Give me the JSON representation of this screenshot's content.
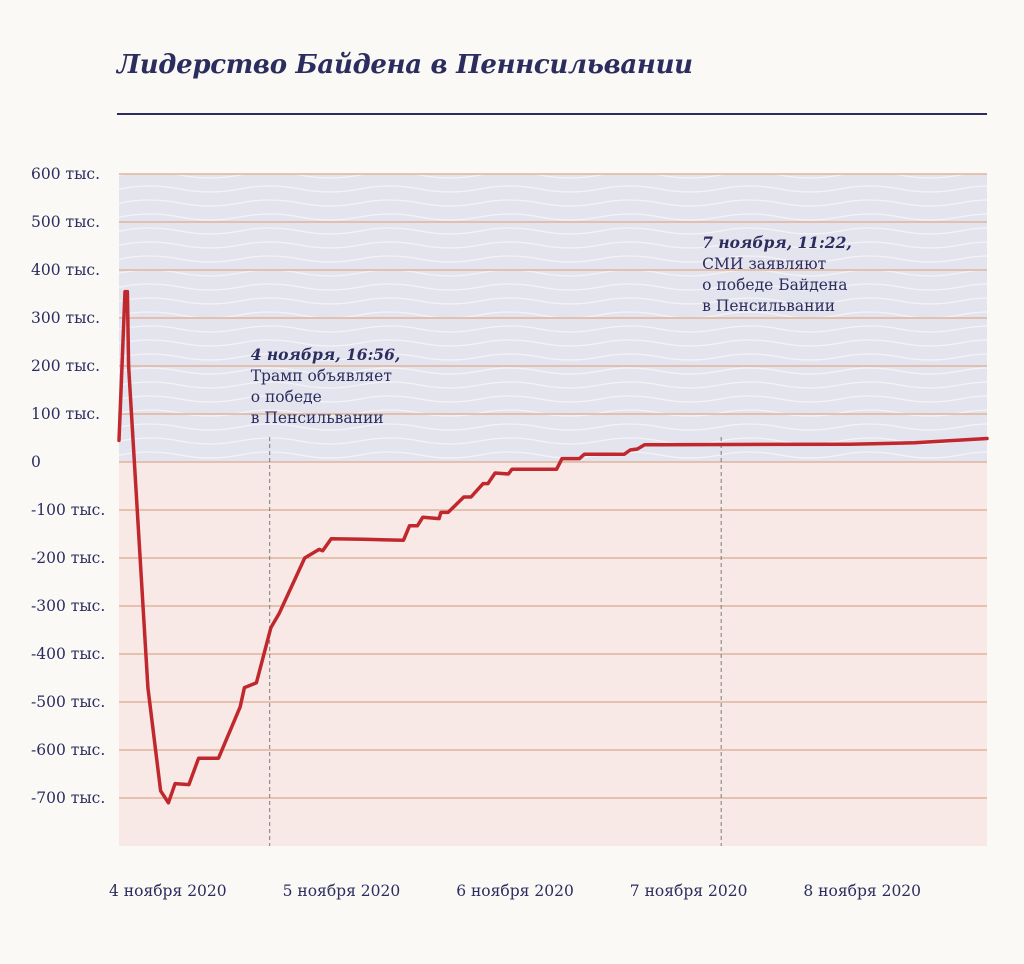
{
  "chart_data": {
    "type": "line",
    "title": "Лидерство Байдена в Пеннсильвании",
    "xlabel": "",
    "ylabel": "",
    "ylim": [
      -800000,
      600000
    ],
    "xlim": [
      "2020-11-04T00:00",
      "2020-11-09T00:00"
    ],
    "y_ticks": [
      {
        "value": 600000,
        "label": "600 тыс."
      },
      {
        "value": 500000,
        "label": "500 тыс."
      },
      {
        "value": 400000,
        "label": "400 тыс."
      },
      {
        "value": 300000,
        "label": "300 тыс."
      },
      {
        "value": 200000,
        "label": "200 тыс."
      },
      {
        "value": 100000,
        "label": "100 тыс."
      },
      {
        "value": 0,
        "label": "0"
      },
      {
        "value": -100000,
        "label": "-100 тыс."
      },
      {
        "value": -200000,
        "label": "-200 тыс."
      },
      {
        "value": -300000,
        "label": "-300 тыс."
      },
      {
        "value": -400000,
        "label": "-400 тыс."
      },
      {
        "value": -500000,
        "label": "-500 тыс."
      },
      {
        "value": -600000,
        "label": "-600 тыс."
      },
      {
        "value": -700000,
        "label": "-700 тыс."
      }
    ],
    "x_ticks": [
      {
        "value": "2020-11-04T00:00",
        "label": "4 ноября 2020"
      },
      {
        "value": "2020-11-05T00:00",
        "label": "5 ноября 2020"
      },
      {
        "value": "2020-11-06T00:00",
        "label": "6 ноября 2020"
      },
      {
        "value": "2020-11-07T00:00",
        "label": "7 ноября 2020"
      },
      {
        "value": "2020-11-08T00:00",
        "label": "8 ноября 2020"
      }
    ],
    "series": [
      {
        "color": "#c0282d",
        "points": [
          {
            "x": "2020-11-04T00:00",
            "y": 45000
          },
          {
            "x": "2020-11-04T00:50",
            "y": 355000
          },
          {
            "x": "2020-11-04T01:10",
            "y": 355000
          },
          {
            "x": "2020-11-04T01:20",
            "y": 200000
          },
          {
            "x": "2020-11-04T04:00",
            "y": -470000
          },
          {
            "x": "2020-11-04T05:45",
            "y": -685000
          },
          {
            "x": "2020-11-04T06:50",
            "y": -710000
          },
          {
            "x": "2020-11-04T07:45",
            "y": -670000
          },
          {
            "x": "2020-11-04T09:40",
            "y": -672000
          },
          {
            "x": "2020-11-04T11:00",
            "y": -617000
          },
          {
            "x": "2020-11-04T13:45",
            "y": -617000
          },
          {
            "x": "2020-11-04T16:45",
            "y": -510000
          },
          {
            "x": "2020-11-04T17:20",
            "y": -470000
          },
          {
            "x": "2020-11-04T19:00",
            "y": -460000
          },
          {
            "x": "2020-11-04T21:00",
            "y": -345000
          },
          {
            "x": "2020-11-04T22:10",
            "y": -315000
          },
          {
            "x": "2020-11-05T01:40",
            "y": -200000
          },
          {
            "x": "2020-11-05T03:40",
            "y": -182000
          },
          {
            "x": "2020-11-05T04:10",
            "y": -185000
          },
          {
            "x": "2020-11-05T05:20",
            "y": -160000
          },
          {
            "x": "2020-11-05T09:50",
            "y": -161000
          },
          {
            "x": "2020-11-05T15:20",
            "y": -163000
          },
          {
            "x": "2020-11-05T16:10",
            "y": -133000
          },
          {
            "x": "2020-11-05T17:15",
            "y": -133000
          },
          {
            "x": "2020-11-05T18:00",
            "y": -115000
          },
          {
            "x": "2020-11-05T20:15",
            "y": -118000
          },
          {
            "x": "2020-11-05T20:30",
            "y": -105000
          },
          {
            "x": "2020-11-05T21:30",
            "y": -105000
          },
          {
            "x": "2020-11-05T23:40",
            "y": -73000
          },
          {
            "x": "2020-11-06T00:40",
            "y": -73000
          },
          {
            "x": "2020-11-06T02:20",
            "y": -45000
          },
          {
            "x": "2020-11-06T03:00",
            "y": -45000
          },
          {
            "x": "2020-11-06T04:00",
            "y": -23000
          },
          {
            "x": "2020-11-06T05:50",
            "y": -25000
          },
          {
            "x": "2020-11-06T06:20",
            "y": -15000
          },
          {
            "x": "2020-11-06T12:30",
            "y": -15000
          },
          {
            "x": "2020-11-06T13:15",
            "y": 7000
          },
          {
            "x": "2020-11-06T15:40",
            "y": 7000
          },
          {
            "x": "2020-11-06T16:20",
            "y": 16000
          },
          {
            "x": "2020-11-06T21:50",
            "y": 16000
          },
          {
            "x": "2020-11-06T22:40",
            "y": 25000
          },
          {
            "x": "2020-11-06T23:40",
            "y": 27000
          },
          {
            "x": "2020-11-07T00:40",
            "y": 36000
          },
          {
            "x": "2020-11-07T03:00",
            "y": 36000
          },
          {
            "x": "2020-11-08T05:00",
            "y": 37000
          },
          {
            "x": "2020-11-08T14:00",
            "y": 40000
          },
          {
            "x": "2020-11-09T00:00",
            "y": 49000
          }
        ]
      }
    ],
    "annotations": [
      {
        "x": "2020-11-04T20:50",
        "title": "4 ноября, 16:56,",
        "lines": [
          "Трамп объявляет",
          "о победе",
          "в Пенсильвании"
        ]
      },
      {
        "x": "2020-11-07T11:15",
        "title": "7 ноября, 11:22,",
        "lines": [
          "СМИ заявляют",
          "о победе Байдена",
          "в Пенсильвании"
        ]
      }
    ],
    "grid": true,
    "colors": {
      "line": "#c0282d",
      "grid": "#e0b49a",
      "positive_zone": "#e4e4ee",
      "negative_zone": "#f8e9e6",
      "text": "#2b2d5e",
      "marker": "#7a7a7a"
    }
  }
}
